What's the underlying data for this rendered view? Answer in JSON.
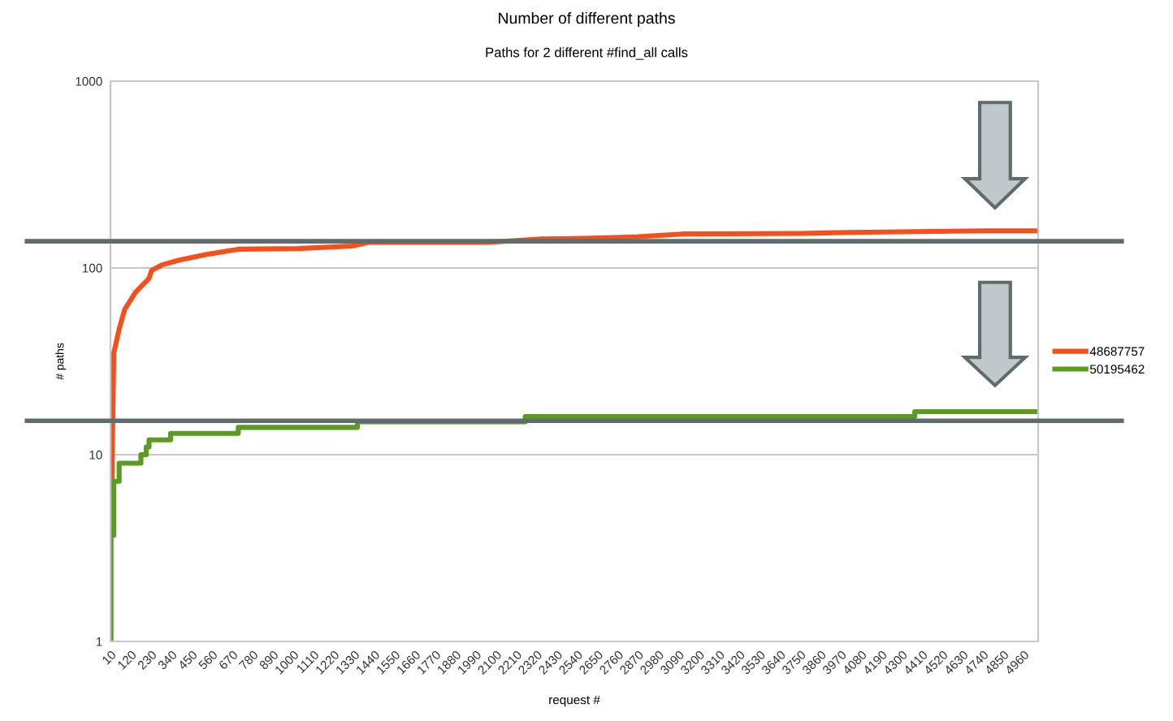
{
  "chart_data": {
    "type": "line",
    "title": "Number of different paths",
    "subtitle": "Paths for 2 different #find_all calls",
    "xlabel": "request #",
    "ylabel": "# paths",
    "series": [
      {
        "name": "48687757",
        "color": "#f5501c",
        "x": [
          10,
          13,
          21,
          28,
          57,
          87,
          145,
          219,
          233,
          292,
          380,
          527,
          703,
          1026,
          1320,
          1408,
          2054,
          2347,
          2583,
          2873,
          3111,
          3754,
          4019,
          4759,
          5040
        ],
        "values": [
          3.7,
          3.7,
          12,
          35,
          47,
          60,
          74,
          88,
          97,
          104,
          110,
          118,
          126,
          127,
          131,
          137,
          137,
          143,
          144,
          147,
          152,
          153,
          155,
          158,
          158
        ]
      },
      {
        "name": "50195462",
        "color": "#5b9b1f",
        "type": "step",
        "x": [
          10,
          13,
          28,
          57,
          175,
          204,
          219,
          336,
          703,
          1349,
          2259,
          4371,
          5040
        ],
        "values": [
          1,
          3.7,
          7.2,
          9,
          10,
          11,
          12,
          13,
          14,
          15,
          16,
          17,
          17
        ]
      }
    ],
    "log": "y",
    "xlim": [
      10,
      5040
    ],
    "ylim": [
      1,
      1000
    ],
    "yticks": [
      1,
      10,
      100,
      1000
    ],
    "xticks": [
      10,
      120,
      230,
      340,
      450,
      560,
      670,
      780,
      890,
      1000,
      1110,
      1220,
      1330,
      1440,
      1550,
      1660,
      1770,
      1880,
      1990,
      2100,
      2210,
      2320,
      2430,
      2540,
      2650,
      2760,
      2870,
      2980,
      3090,
      3200,
      3310,
      3420,
      3530,
      3640,
      3750,
      3860,
      3970,
      4080,
      4190,
      4300,
      4410,
      4520,
      4630,
      4740,
      4850,
      4960
    ],
    "ref_lines": [
      {
        "axis": "y",
        "value": 139,
        "color": "#5f6b6d"
      },
      {
        "axis": "y",
        "value": 15.2,
        "color": "#5f6b6d"
      }
    ],
    "grid": "y",
    "legend": "right",
    "marker": "none",
    "line_style": "solid"
  }
}
